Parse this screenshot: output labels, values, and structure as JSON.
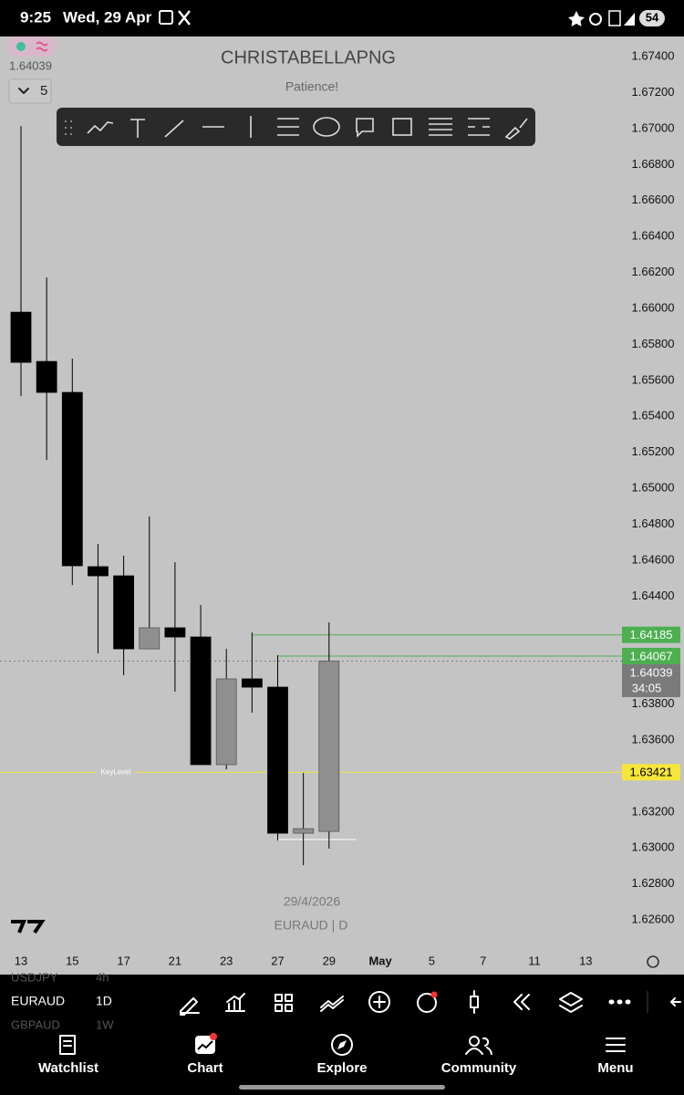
{
  "status_bar": {
    "time": "9:25",
    "date": "Wed, 29 Apr",
    "battery": "54"
  },
  "top_left": {
    "price": "1.64039",
    "interval": "5"
  },
  "chart_data": {
    "type": "candlestick",
    "title": "CHRISTABELLAPNG",
    "subtitle": "Patience!",
    "date_label": "29/4/2026",
    "symbol_label": "EURAUD | D",
    "categories": [
      "13",
      null,
      "15",
      null,
      "17",
      null,
      "21",
      null,
      "23",
      null,
      "27",
      null,
      "29",
      null,
      "May",
      null,
      "5",
      null,
      "7",
      null,
      "11",
      null,
      "13"
    ],
    "open": [
      1.65979,
      1.65705,
      1.65533,
      1.64564,
      1.64513,
      1.64107,
      1.64224,
      1.64173,
      1.63463,
      1.6394,
      1.63894,
      1.63082,
      1.63092,
      null,
      null,
      null,
      null,
      null,
      null,
      null,
      null,
      null,
      null
    ],
    "high": [
      1.67014,
      1.66172,
      1.65721,
      1.64691,
      1.64625,
      1.64843,
      1.64589,
      1.64351,
      1.64107,
      1.64198,
      1.64072,
      1.63417,
      1.64254,
      null,
      null,
      null,
      null,
      null,
      null,
      null,
      null,
      null,
      null
    ],
    "low": [
      1.65513,
      1.65157,
      1.64462,
      1.64082,
      1.6396,
      1.64107,
      1.63869,
      1.63463,
      1.63437,
      1.63752,
      1.63041,
      1.62904,
      1.62996,
      null,
      null,
      null,
      null,
      null,
      null,
      null,
      null,
      null,
      null
    ],
    "close": [
      1.657,
      1.65533,
      1.64569,
      1.64513,
      1.64107,
      1.64224,
      1.64173,
      1.63463,
      1.6394,
      1.63894,
      1.63082,
      1.63107,
      1.64039,
      null,
      null,
      null,
      null,
      null,
      null,
      null,
      null,
      null,
      null
    ],
    "up_color": "#8f8f8f",
    "down_color": "#000000",
    "ylim": [
      1.62438,
      1.67512
    ],
    "yticks": [
      {
        "value": 1.674,
        "label": "1.67400"
      },
      {
        "value": 1.672,
        "label": "1.67200"
      },
      {
        "value": 1.67,
        "label": "1.67000"
      },
      {
        "value": 1.668,
        "label": "1.66800"
      },
      {
        "value": 1.666,
        "label": "1.66600"
      },
      {
        "value": 1.664,
        "label": "1.66400"
      },
      {
        "value": 1.662,
        "label": "1.66200"
      },
      {
        "value": 1.66,
        "label": "1.66000"
      },
      {
        "value": 1.658,
        "label": "1.65800"
      },
      {
        "value": 1.656,
        "label": "1.65600"
      },
      {
        "value": 1.654,
        "label": "1.65400"
      },
      {
        "value": 1.652,
        "label": "1.65200"
      },
      {
        "value": 1.65,
        "label": "1.65000"
      },
      {
        "value": 1.648,
        "label": "1.64800"
      },
      {
        "value": 1.646,
        "label": "1.64600"
      },
      {
        "value": 1.644,
        "label": "1.64400"
      },
      {
        "value": 1.638,
        "label": "1.63800"
      },
      {
        "value": 1.636,
        "label": "1.63600"
      },
      {
        "value": 1.632,
        "label": "1.63200"
      },
      {
        "value": 1.63,
        "label": "1.63000"
      },
      {
        "value": 1.628,
        "label": "1.62800"
      },
      {
        "value": 1.626,
        "label": "1.62600"
      }
    ],
    "price_lines": [
      {
        "value": 1.64185,
        "color": "#4caf50"
      },
      {
        "value": 1.64067,
        "color": "#4caf50"
      },
      {
        "value": 1.64039,
        "color": "#7a7a7a"
      },
      {
        "value": 1.63421,
        "color": "#f5e63c"
      }
    ],
    "countdown": "34:05",
    "key_level_label": "KeyLevel"
  },
  "watchlist": [
    {
      "symbol": "USDJPY",
      "interval": "4h"
    },
    {
      "symbol": "EURAUD",
      "interval": "1D"
    },
    {
      "symbol": "GBPAUD",
      "interval": "1W"
    }
  ],
  "nav": [
    "Watchlist",
    "Chart",
    "Explore",
    "Community",
    "Menu"
  ]
}
